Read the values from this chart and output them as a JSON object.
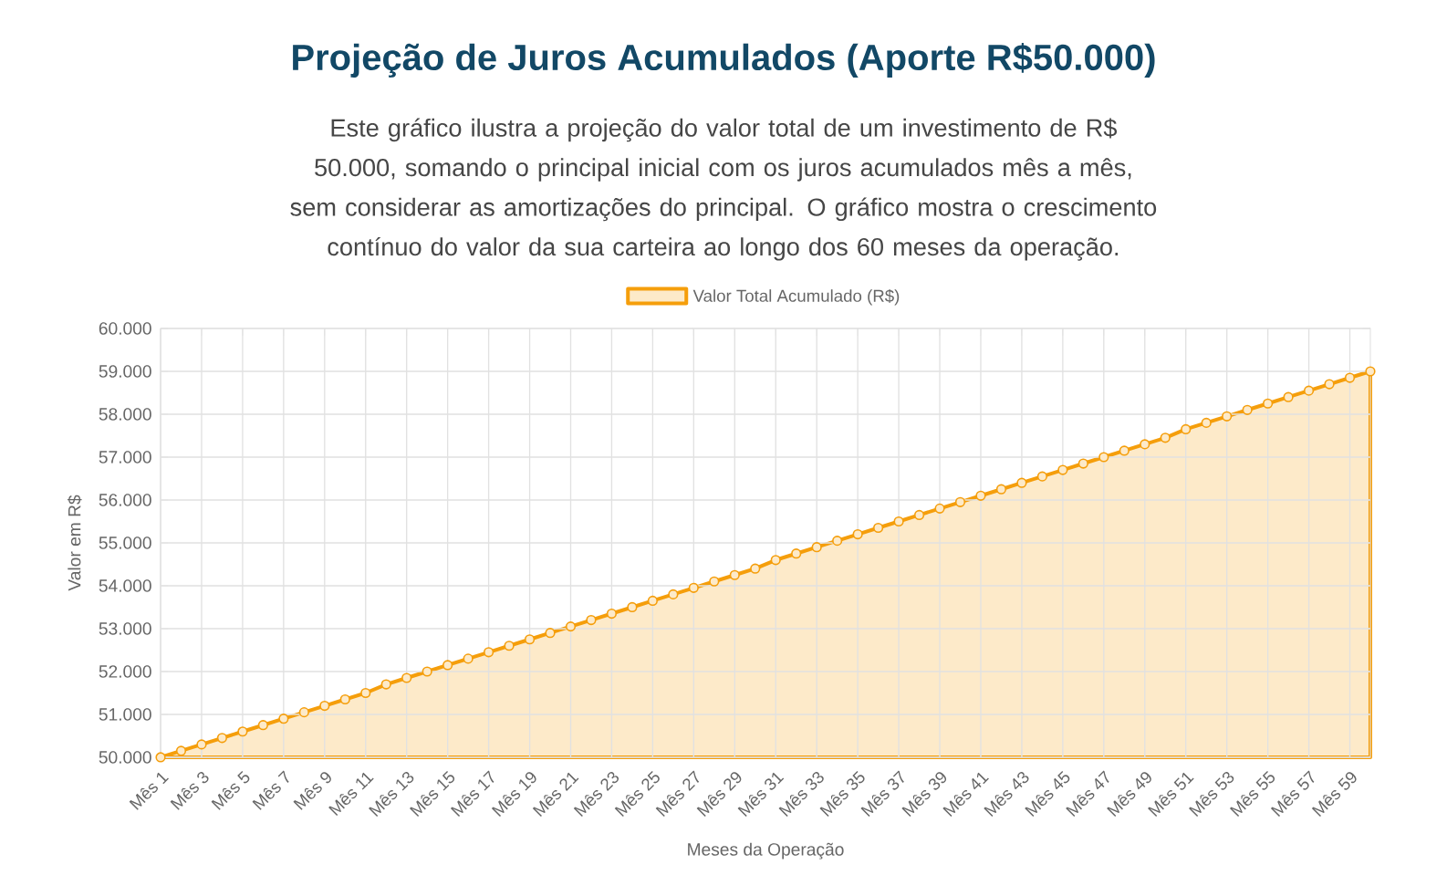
{
  "chart_data": {
    "type": "area",
    "title": "Projeção de Juros Acumulados (Aporte R$50.000)",
    "subtitle": "Este gráfico ilustra a projeção do valor total de um investimento de R$ 50.000, somando o principal inicial com os juros acumulados mês a mês, sem considerar as amortizações do principal. O gráfico mostra o crescimento contínuo do valor da sua carteira ao longo dos 60 meses da operação.",
    "xlabel": "Meses da Operação",
    "ylabel": "Valor em R$",
    "categories": [
      "Mês 1",
      null,
      "Mês 3",
      null,
      "Mês 5",
      null,
      "Mês 7",
      null,
      "Mês 9",
      null,
      "Mês 11",
      null,
      "Mês 13",
      null,
      "Mês 15",
      null,
      "Mês 17",
      null,
      "Mês 19",
      null,
      "Mês 21",
      null,
      "Mês 23",
      null,
      "Mês 25",
      null,
      "Mês 27",
      null,
      "Mês 29",
      null,
      "Mês 31",
      null,
      "Mês 33",
      null,
      "Mês 35",
      null,
      "Mês 37",
      null,
      "Mês 39",
      null,
      "Mês 41",
      null,
      "Mês 43",
      null,
      "Mês 45",
      null,
      "Mês 47",
      null,
      "Mês 49",
      null,
      "Mês 51",
      null,
      "Mês 53",
      null,
      "Mês 55",
      null,
      "Mês 57",
      null,
      "Mês 59",
      null
    ],
    "series": [
      {
        "name": "Valor Total Acumulado (R$)",
        "color": "#f59e0b",
        "values": [
          50000,
          50150,
          50300,
          50450,
          50600,
          50750,
          50900,
          51050,
          51200,
          51350,
          51500,
          51700,
          51850,
          52000,
          52150,
          52300,
          52450,
          52600,
          52750,
          52900,
          53050,
          53200,
          53350,
          53500,
          53650,
          53800,
          53950,
          54100,
          54250,
          54400,
          54600,
          54750,
          54900,
          55050,
          55200,
          55350,
          55500,
          55650,
          55800,
          55950,
          56100,
          56250,
          56400,
          56550,
          56700,
          56850,
          57000,
          57150,
          57300,
          57450,
          57650,
          57800,
          57950,
          58100,
          58250,
          58400,
          58550,
          58700,
          58850,
          59000
        ]
      }
    ],
    "ylim": [
      50000,
      60000
    ],
    "yticks": [
      {
        "value": 50000,
        "label": "50.000"
      },
      {
        "value": 51000,
        "label": "51.000"
      },
      {
        "value": 52000,
        "label": "52.000"
      },
      {
        "value": 53000,
        "label": "53.000"
      },
      {
        "value": 54000,
        "label": "54.000"
      },
      {
        "value": 55000,
        "label": "55.000"
      },
      {
        "value": 56000,
        "label": "56.000"
      },
      {
        "value": 57000,
        "label": "57.000"
      },
      {
        "value": 58000,
        "label": "58.000"
      },
      {
        "value": 59000,
        "label": "59.000"
      },
      {
        "value": 60000,
        "label": "60.000"
      }
    ],
    "grid": true,
    "legend": "top",
    "marker": "circle"
  }
}
